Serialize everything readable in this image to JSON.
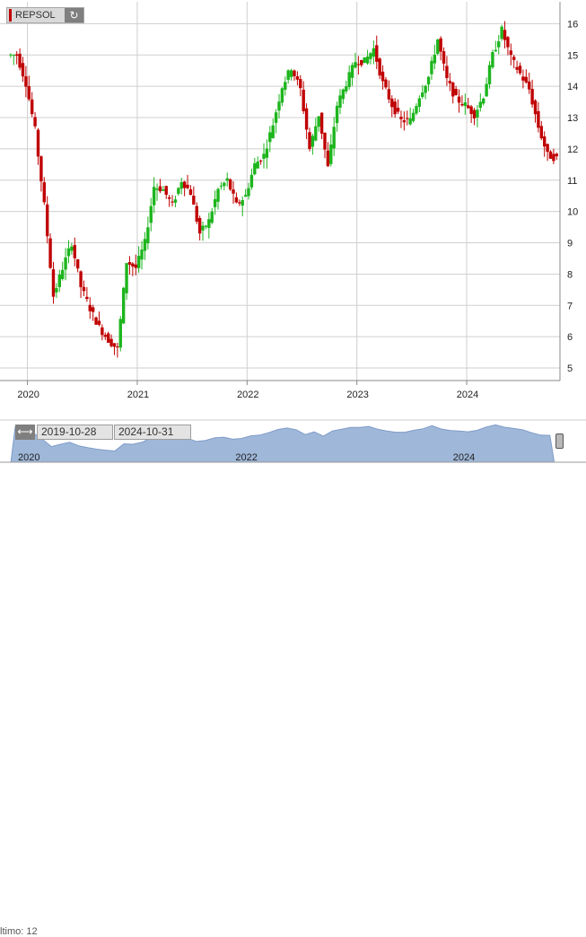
{
  "ticker": {
    "symbol": "REPSOL",
    "refresh_icon": "refresh-icon"
  },
  "range": {
    "start": "2019-10-28",
    "end": "2024-10-31",
    "handle_icon": "double-arrow-icon"
  },
  "navigator": {
    "year_labels": [
      "2020",
      "2022",
      "2024"
    ]
  },
  "partial_footer_text": "ltimo: 12",
  "colors": {
    "up": "#1db51d",
    "down": "#c00000",
    "grid": "#cfcfcf",
    "navigator_fill": "#9fb8d9",
    "navigator_line": "#7f9cc8"
  },
  "chart_data": {
    "type": "candlestick",
    "x_ticks": [
      "2020",
      "2021",
      "2022",
      "2023",
      "2024"
    ],
    "y_ticks": [
      5,
      6,
      7,
      8,
      9,
      10,
      11,
      12,
      13,
      14,
      15,
      16
    ],
    "ylim": [
      4.6,
      16.7
    ],
    "grid": true,
    "approximate_monthly_close": [
      {
        "date": "2019-11",
        "close": 15.0
      },
      {
        "date": "2019-12",
        "close": 14.1
      },
      {
        "date": "2020-01",
        "close": 12.6
      },
      {
        "date": "2020-02",
        "close": 10.2
      },
      {
        "date": "2020-03",
        "close": 7.3
      },
      {
        "date": "2020-04",
        "close": 8.2
      },
      {
        "date": "2020-05",
        "close": 9.0
      },
      {
        "date": "2020-06",
        "close": 7.6
      },
      {
        "date": "2020-07",
        "close": 6.9
      },
      {
        "date": "2020-08",
        "close": 6.3
      },
      {
        "date": "2020-09",
        "close": 5.9
      },
      {
        "date": "2020-10",
        "close": 5.6
      },
      {
        "date": "2020-11",
        "close": 8.4
      },
      {
        "date": "2020-12",
        "close": 8.2
      },
      {
        "date": "2021-01",
        "close": 9.0
      },
      {
        "date": "2021-02",
        "close": 10.8
      },
      {
        "date": "2021-03",
        "close": 10.7
      },
      {
        "date": "2021-04",
        "close": 10.2
      },
      {
        "date": "2021-05",
        "close": 11.0
      },
      {
        "date": "2021-06",
        "close": 10.6
      },
      {
        "date": "2021-07",
        "close": 9.3
      },
      {
        "date": "2021-08",
        "close": 9.7
      },
      {
        "date": "2021-09",
        "close": 10.7
      },
      {
        "date": "2021-10",
        "close": 11.0
      },
      {
        "date": "2021-11",
        "close": 10.2
      },
      {
        "date": "2021-12",
        "close": 10.5
      },
      {
        "date": "2022-01",
        "close": 11.5
      },
      {
        "date": "2022-02",
        "close": 11.8
      },
      {
        "date": "2022-03",
        "close": 12.8
      },
      {
        "date": "2022-04",
        "close": 14.0
      },
      {
        "date": "2022-05",
        "close": 14.6
      },
      {
        "date": "2022-06",
        "close": 13.9
      },
      {
        "date": "2022-07",
        "close": 12.0
      },
      {
        "date": "2022-08",
        "close": 13.1
      },
      {
        "date": "2022-09",
        "close": 11.4
      },
      {
        "date": "2022-10",
        "close": 13.4
      },
      {
        "date": "2022-11",
        "close": 14.1
      },
      {
        "date": "2022-12",
        "close": 14.8
      },
      {
        "date": "2023-01",
        "close": 14.8
      },
      {
        "date": "2023-02",
        "close": 15.2
      },
      {
        "date": "2023-03",
        "close": 14.1
      },
      {
        "date": "2023-04",
        "close": 13.4
      },
      {
        "date": "2023-05",
        "close": 12.9
      },
      {
        "date": "2023-06",
        "close": 12.9
      },
      {
        "date": "2023-07",
        "close": 13.7
      },
      {
        "date": "2023-08",
        "close": 14.3
      },
      {
        "date": "2023-09",
        "close": 15.5
      },
      {
        "date": "2023-10",
        "close": 14.2
      },
      {
        "date": "2023-11",
        "close": 13.6
      },
      {
        "date": "2023-12",
        "close": 13.4
      },
      {
        "date": "2024-01",
        "close": 13.1
      },
      {
        "date": "2024-02",
        "close": 13.7
      },
      {
        "date": "2024-03",
        "close": 15.0
      },
      {
        "date": "2024-04",
        "close": 15.8
      },
      {
        "date": "2024-05",
        "close": 14.9
      },
      {
        "date": "2024-06",
        "close": 14.4
      },
      {
        "date": "2024-07",
        "close": 13.9
      },
      {
        "date": "2024-08",
        "close": 12.7
      },
      {
        "date": "2024-09",
        "close": 11.8
      },
      {
        "date": "2024-10",
        "close": 11.7
      }
    ]
  }
}
